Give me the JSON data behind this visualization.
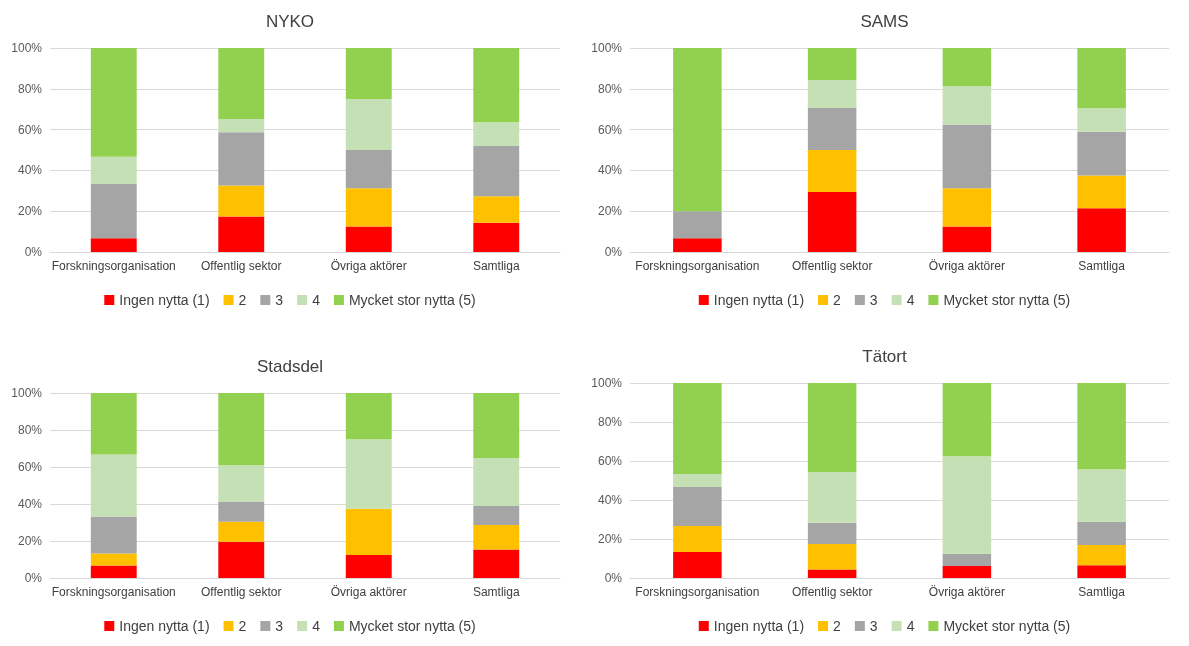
{
  "chart_data": [
    {
      "type": "bar",
      "title": "NYKO",
      "stacked": true,
      "grid": "y",
      "legend": "bottom",
      "categories": [
        "Forskningsorganisation",
        "Offentlig sektor",
        "Övriga aktörer",
        "Samtliga"
      ],
      "ylim": [
        0,
        100
      ],
      "yticks": [
        {
          "value": 0,
          "label": "0%"
        },
        {
          "value": 20,
          "label": "20%"
        },
        {
          "value": 40,
          "label": "40%"
        },
        {
          "value": 60,
          "label": "60%"
        },
        {
          "value": 80,
          "label": "80%"
        },
        {
          "value": 100,
          "label": "100%"
        }
      ],
      "series": [
        {
          "name": "Ingen nytta (1)",
          "color": "#ff0000",
          "values": [
            6.7,
            17.4,
            12.5,
            14.3
          ]
        },
        {
          "name": "2",
          "color": "#ffc000",
          "values": [
            0,
            15.2,
            18.7,
            13.0
          ]
        },
        {
          "name": "3",
          "color": "#a5a5a5",
          "values": [
            26.6,
            26.1,
            18.8,
            24.6
          ]
        },
        {
          "name": "4",
          "color": "#c5e0b4",
          "values": [
            13.4,
            6.5,
            25.0,
            11.7
          ]
        },
        {
          "name": "Mycket stor nytta (5)",
          "color": "#92d050",
          "values": [
            53.3,
            34.8,
            25.0,
            36.4
          ]
        }
      ]
    },
    {
      "type": "bar",
      "title": "SAMS",
      "stacked": true,
      "grid": "y",
      "legend": "bottom",
      "categories": [
        "Forskningsorganisation",
        "Offentlig sektor",
        "Övriga aktörer",
        "Samtliga"
      ],
      "ylim": [
        0,
        100
      ],
      "yticks": [
        {
          "value": 0,
          "label": "0%"
        },
        {
          "value": 20,
          "label": "20%"
        },
        {
          "value": 40,
          "label": "40%"
        },
        {
          "value": 60,
          "label": "60%"
        },
        {
          "value": 80,
          "label": "80%"
        },
        {
          "value": 100,
          "label": "100%"
        }
      ],
      "series": [
        {
          "name": "Ingen nytta (1)",
          "color": "#ff0000",
          "values": [
            6.7,
            29.4,
            12.5,
            21.4
          ]
        },
        {
          "name": "2",
          "color": "#ffc000",
          "values": [
            0,
            20.6,
            18.7,
            16.1
          ]
        },
        {
          "name": "3",
          "color": "#a5a5a5",
          "values": [
            13.3,
            20.6,
            31.3,
            21.4
          ]
        },
        {
          "name": "4",
          "color": "#c5e0b4",
          "values": [
            0,
            13.7,
            18.7,
            11.6
          ]
        },
        {
          "name": "Mycket stor nytta (5)",
          "color": "#92d050",
          "values": [
            80.0,
            15.7,
            18.8,
            29.5
          ]
        }
      ]
    },
    {
      "type": "bar",
      "title": "Stadsdel",
      "stacked": true,
      "grid": "y",
      "legend": "bottom",
      "categories": [
        "Forskningsorganisation",
        "Offentlig sektor",
        "Övriga aktörer",
        "Samtliga"
      ],
      "ylim": [
        0,
        100
      ],
      "yticks": [
        {
          "value": 0,
          "label": "0%"
        },
        {
          "value": 20,
          "label": "20%"
        },
        {
          "value": 40,
          "label": "40%"
        },
        {
          "value": 60,
          "label": "60%"
        },
        {
          "value": 80,
          "label": "80%"
        },
        {
          "value": 100,
          "label": "100%"
        }
      ],
      "series": [
        {
          "name": "Ingen nytta (1)",
          "color": "#ff0000",
          "values": [
            6.7,
            19.6,
            12.5,
            15.4
          ]
        },
        {
          "name": "2",
          "color": "#ffc000",
          "values": [
            6.6,
            10.8,
            25.0,
            13.2
          ]
        },
        {
          "name": "3",
          "color": "#a5a5a5",
          "values": [
            20.0,
            10.9,
            0,
            10.3
          ]
        },
        {
          "name": "4",
          "color": "#c5e0b4",
          "values": [
            33.4,
            19.6,
            37.5,
            26.0
          ]
        },
        {
          "name": "Mycket stor nytta (5)",
          "color": "#92d050",
          "values": [
            33.3,
            39.1,
            25.0,
            35.1
          ]
        }
      ]
    },
    {
      "type": "bar",
      "title": "Tätort",
      "stacked": true,
      "grid": "y",
      "legend": "bottom",
      "categories": [
        "Forskningsorganisation",
        "Offentlig sektor",
        "Övriga aktörer",
        "Samtliga"
      ],
      "ylim": [
        0,
        100
      ],
      "yticks": [
        {
          "value": 0,
          "label": "0%"
        },
        {
          "value": 20,
          "label": "20%"
        },
        {
          "value": 40,
          "label": "40%"
        },
        {
          "value": 60,
          "label": "60%"
        },
        {
          "value": 80,
          "label": "80%"
        },
        {
          "value": 100,
          "label": "100%"
        }
      ],
      "series": [
        {
          "name": "Ingen nytta (1)",
          "color": "#ff0000",
          "values": [
            13.3,
            4.3,
            6.2,
            6.5
          ]
        },
        {
          "name": "2",
          "color": "#ffc000",
          "values": [
            13.4,
            13.1,
            0,
            10.4
          ]
        },
        {
          "name": "3",
          "color": "#a5a5a5",
          "values": [
            20.0,
            10.9,
            6.3,
            11.9
          ]
        },
        {
          "name": "4",
          "color": "#c5e0b4",
          "values": [
            6.6,
            26.0,
            50.0,
            27.0
          ]
        },
        {
          "name": "Mycket stor nytta (5)",
          "color": "#92d050",
          "values": [
            46.7,
            45.7,
            37.5,
            44.2
          ]
        }
      ]
    }
  ]
}
